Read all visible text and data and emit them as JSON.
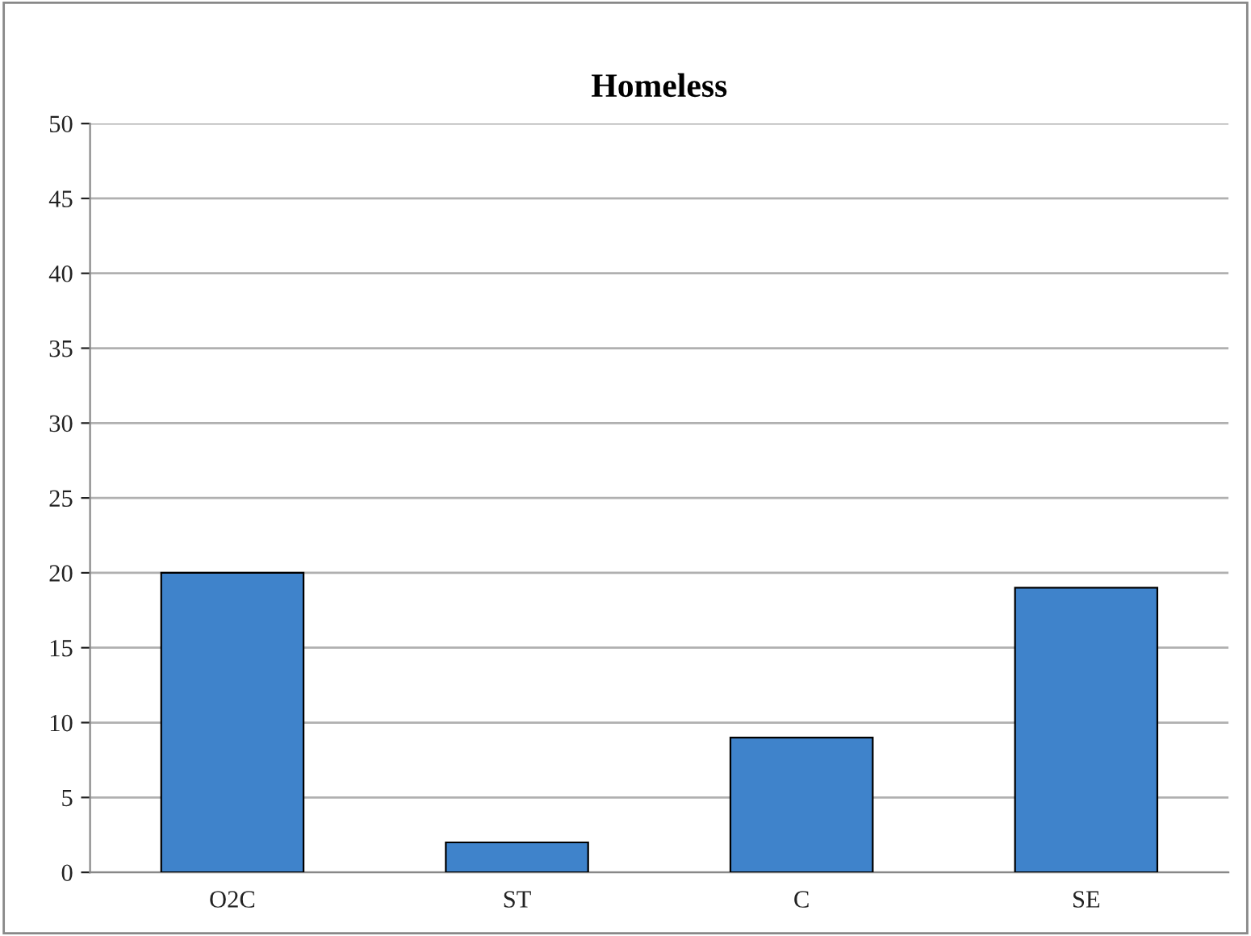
{
  "chart_data": {
    "type": "bar",
    "title": "Homeless",
    "categories": [
      "O2C",
      "ST",
      "C",
      "SE"
    ],
    "values": [
      20,
      2,
      9,
      19
    ],
    "color": "#3f83cb",
    "ylim": [
      0,
      50
    ],
    "yticks": [
      0,
      5,
      10,
      15,
      20,
      25,
      30,
      35,
      40,
      45,
      50
    ],
    "grid": "y",
    "legend": false
  }
}
